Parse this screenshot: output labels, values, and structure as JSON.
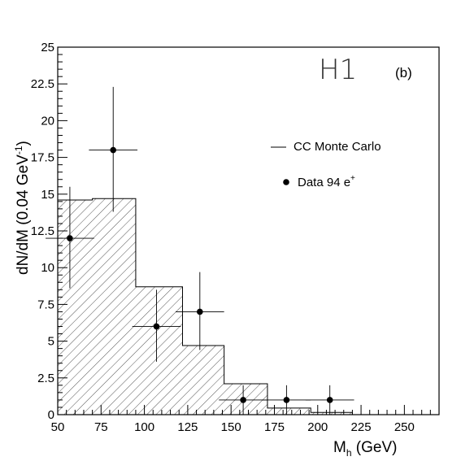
{
  "chart_data": {
    "type": "bar",
    "experiment_label": "H1",
    "panel_label": "(b)",
    "xlabel": {
      "main": "M",
      "sub": "h",
      "rest": " (GeV)"
    },
    "ylabel": {
      "main": "dN/dM  (0.04 GeV",
      "sup": "-1",
      "end": ")"
    },
    "xlim": [
      50,
      270
    ],
    "ylim": [
      0,
      25
    ],
    "x_ticks": [
      50,
      75,
      100,
      125,
      150,
      175,
      200,
      225,
      250
    ],
    "x_tick_labels": [
      "50",
      "75",
      "100",
      "125",
      "150",
      "175",
      "200",
      "225",
      "250"
    ],
    "y_ticks": [
      0,
      2.5,
      5,
      7.5,
      10,
      12.5,
      15,
      17.5,
      20,
      22.5,
      25
    ],
    "y_tick_labels": [
      "0",
      "2.5",
      "5",
      "7.5",
      "10",
      "12.5",
      "15",
      "17.5",
      "20",
      "22.5",
      "25"
    ],
    "grid": false,
    "legend_position": "right",
    "legend": [
      {
        "label": "CC Monte Carlo",
        "marker": "line"
      },
      {
        "label": "Data 94 e",
        "sup": "+",
        "marker": "dot"
      }
    ],
    "monte_carlo": {
      "bins": [
        {
          "x0": 50,
          "x1": 70,
          "y": 14.6
        },
        {
          "x0": 70,
          "x1": 95,
          "y": 14.7
        },
        {
          "x0": 95,
          "x1": 122,
          "y": 8.7
        },
        {
          "x0": 122,
          "x1": 146,
          "y": 4.7
        },
        {
          "x0": 146,
          "x1": 171,
          "y": 2.1
        },
        {
          "x0": 171,
          "x1": 196,
          "y": 0.45
        },
        {
          "x0": 196,
          "x1": 220,
          "y": 0.15
        }
      ]
    },
    "data_points": [
      {
        "x": 57,
        "y": 12,
        "xerr": 14,
        "ylo": 8.6,
        "yhi": 15.5
      },
      {
        "x": 82,
        "y": 18,
        "xerr": 14,
        "ylo": 13.8,
        "yhi": 22.3
      },
      {
        "x": 107,
        "y": 6,
        "xerr": 14,
        "ylo": 3.6,
        "yhi": 8.5
      },
      {
        "x": 132,
        "y": 7,
        "xerr": 14,
        "ylo": 4.4,
        "yhi": 9.7
      },
      {
        "x": 157,
        "y": 1,
        "xerr": 14,
        "ylo": 0,
        "yhi": 2.0
      },
      {
        "x": 182,
        "y": 1,
        "xerr": 14,
        "ylo": 0,
        "yhi": 2.0
      },
      {
        "x": 207,
        "y": 1,
        "xerr": 14,
        "ylo": 0,
        "yhi": 2.0
      }
    ],
    "colors": {
      "axis": "#000000",
      "hatch": "#555555",
      "marker": "#000000"
    }
  }
}
